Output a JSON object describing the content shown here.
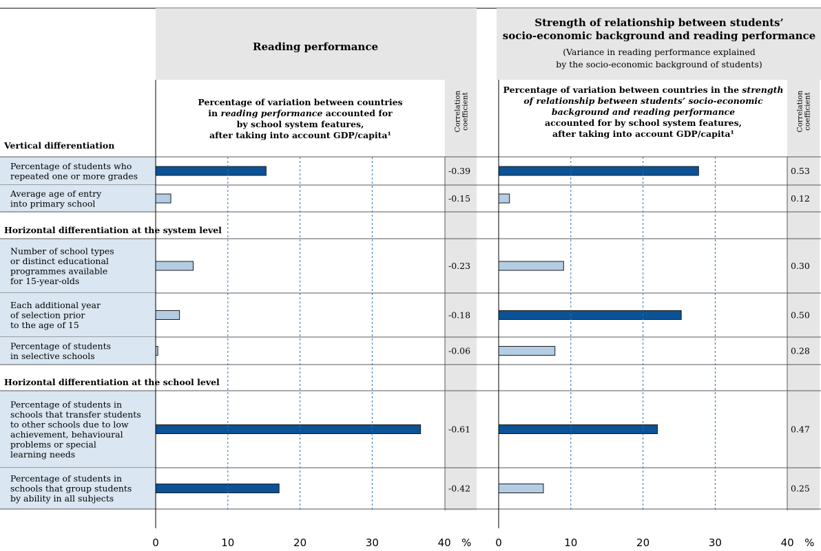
{
  "left_panel": {
    "title": "Reading performance",
    "subheader": [
      "Percentage of variation between countries",
      "in |reading performance| accounted for",
      "by school system features,",
      "after taking into account GDP/capita¹"
    ],
    "corr_header": [
      "Correlation",
      "coefficient"
    ]
  },
  "right_panel": {
    "title": [
      "Strength of relationship between students’",
      "socio-economic background and reading performance"
    ],
    "subtitle": [
      "(Variance in reading performance explained",
      "by the socio-economic background of students)"
    ],
    "subheader": [
      "Percentage of variation between countries in the |strength|",
      "|of relationship between students’ socio-economic|",
      "|background and reading performance|",
      "accounted for by school system features,",
      "after taking into account GDP/capita¹"
    ],
    "corr_header": [
      "Correlation",
      "coefficient"
    ]
  },
  "colors": {
    "dark_bar": "#0b5296",
    "light_bar": "#b4cde4",
    "label_bg": "#dae6f1",
    "header_bg": "#e6e6e6",
    "corr_bg": "#e6e6e6"
  },
  "chart_data": {
    "type": "bar",
    "orientation": "horizontal",
    "unit": "%",
    "xlim": [
      0,
      40
    ],
    "xticks": [
      "0",
      "10",
      "20",
      "30",
      "40"
    ],
    "unit_label": "%",
    "sections": [
      {
        "title": "Vertical differentiation",
        "rows": [
          {
            "label": [
              "Percentage of students who",
              "repeated one or more grades"
            ],
            "reading": 15.3,
            "reading_significant": true,
            "reading_corr": "-0.39",
            "ses": 27.7,
            "ses_significant": true,
            "ses_corr": "0.53"
          },
          {
            "label": [
              "Average age of entry",
              "into primary school"
            ],
            "reading": 2.1,
            "reading_significant": false,
            "reading_corr": "-0.15",
            "ses": 1.5,
            "ses_significant": false,
            "ses_corr": "0.12"
          }
        ]
      },
      {
        "title": "Horizontal differentiation at the system level",
        "rows": [
          {
            "label": [
              "Number of school types",
              "or distinct educational",
              "programmes available",
              "for 15-year-olds"
            ],
            "reading": 5.2,
            "reading_significant": false,
            "reading_corr": "-0.23",
            "ses": 9.0,
            "ses_significant": false,
            "ses_corr": "0.30"
          },
          {
            "label": [
              "Each additional year",
              "of selection prior",
              "to the age of 15"
            ],
            "reading": 3.3,
            "reading_significant": false,
            "reading_corr": "-0.18",
            "ses": 25.3,
            "ses_significant": true,
            "ses_corr": "0.50"
          },
          {
            "label": [
              "Percentage of students",
              "in selective schools"
            ],
            "reading": 0.3,
            "reading_significant": false,
            "reading_corr": "-0.06",
            "ses": 7.8,
            "ses_significant": false,
            "ses_corr": "0.28"
          }
        ]
      },
      {
        "title": "Horizontal differentiation at the school level",
        "rows": [
          {
            "label": [
              "Percentage of students in",
              "schools that transfer students",
              "to other schools due to low",
              "achievement, behavioural",
              "problems or special",
              "learning needs"
            ],
            "reading": 36.7,
            "reading_significant": true,
            "reading_corr": "-0.61",
            "ses": 22.0,
            "ses_significant": true,
            "ses_corr": "0.47"
          },
          {
            "label": [
              "Percentage of students in",
              "schools that group students",
              "by ability in all subjects"
            ],
            "reading": 17.1,
            "reading_significant": true,
            "reading_corr": "-0.42",
            "ses": 6.2,
            "ses_significant": false,
            "ses_corr": "0.25"
          }
        ]
      }
    ]
  }
}
